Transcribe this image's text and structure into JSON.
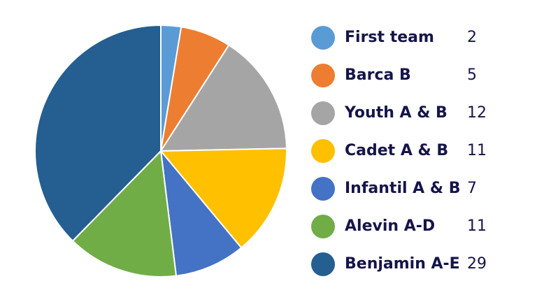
{
  "chart_data": {
    "type": "pie",
    "categories": [
      "First team",
      "Barca B",
      "Youth A & B",
      "Cadet A & B",
      "Infantil A & B",
      "Alevin A-D",
      "Benjamin A-E"
    ],
    "values": [
      2,
      5,
      12,
      11,
      7,
      11,
      29
    ],
    "colors": [
      "#5b9bd5",
      "#ed7d31",
      "#a5a5a5",
      "#ffc000",
      "#4472c4",
      "#70ad47",
      "#255e91"
    ],
    "legend": "right"
  }
}
